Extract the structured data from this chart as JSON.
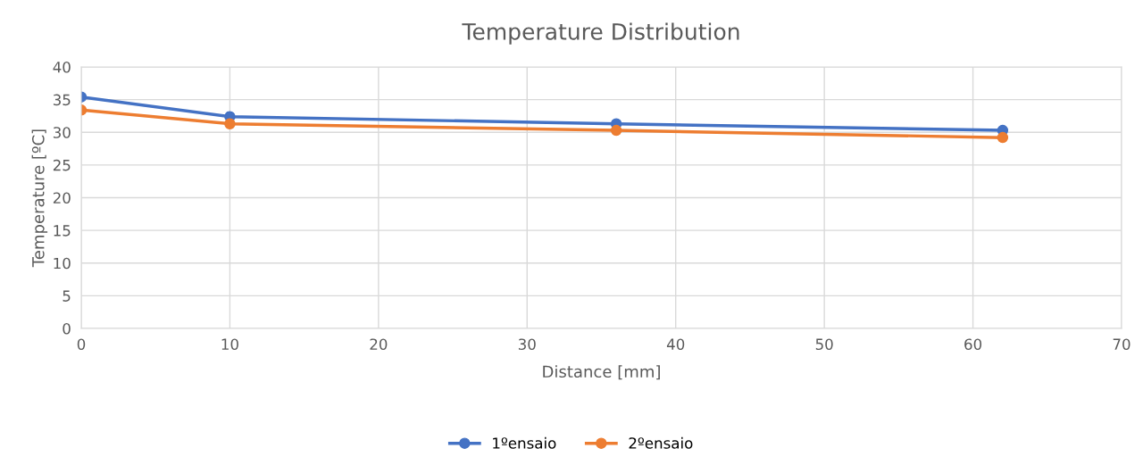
{
  "chart_data": {
    "type": "line",
    "title": "Temperature Distribution",
    "xlabel": "Distance [mm]",
    "ylabel": "Temperature [ºC]",
    "x": [
      0,
      10,
      36,
      62
    ],
    "series": [
      {
        "name": "1ºensaio",
        "color": "#4472c4",
        "values": [
          35.4,
          32.4,
          31.3,
          30.3
        ]
      },
      {
        "name": "2ºensaio",
        "color": "#ed7d31",
        "values": [
          33.4,
          31.3,
          30.3,
          29.2
        ]
      }
    ],
    "xlim": [
      0,
      70
    ],
    "xticks": [
      0,
      10,
      20,
      30,
      40,
      50,
      60,
      70
    ],
    "ylim": [
      0,
      40
    ],
    "yticks": [
      0,
      5,
      10,
      15,
      20,
      25,
      30,
      35,
      40
    ],
    "grid": true,
    "legend": "bottom",
    "marker": "circle",
    "line_style": "solid"
  }
}
